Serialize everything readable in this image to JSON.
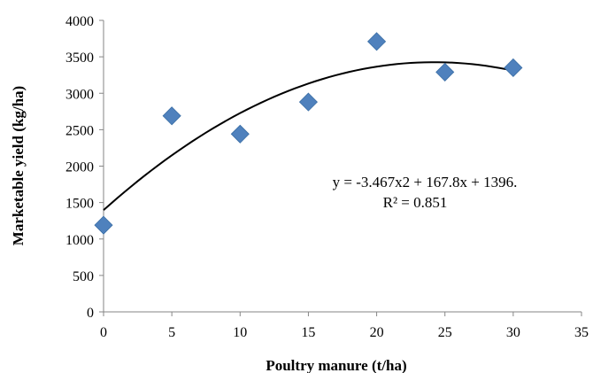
{
  "chart_data": {
    "type": "scatter",
    "title": "",
    "xlabel": "Poultry manure (t/ha)",
    "ylabel": "Marketable yield (kg/ha)",
    "xlim": [
      0,
      35
    ],
    "ylim": [
      0,
      4000
    ],
    "x_ticks": [
      0,
      5,
      10,
      15,
      20,
      25,
      30,
      35
    ],
    "y_ticks": [
      0,
      500,
      1000,
      1500,
      2000,
      2500,
      3000,
      3500,
      4000
    ],
    "grid": false,
    "legend": "none",
    "series": [
      {
        "marker": "diamond",
        "color": "#4f81bd",
        "points": [
          {
            "x": 0,
            "y": 1190
          },
          {
            "x": 5,
            "y": 2690
          },
          {
            "x": 10,
            "y": 2440
          },
          {
            "x": 15,
            "y": 2880
          },
          {
            "x": 20,
            "y": 3710
          },
          {
            "x": 25,
            "y": 3290
          },
          {
            "x": 30,
            "y": 3350
          }
        ]
      }
    ],
    "trendline": {
      "type": "polynomial",
      "coefficients": {
        "a": -3.467,
        "b": 167.8,
        "c": 1396
      },
      "x_range": [
        0,
        30
      ],
      "color": "#000000"
    },
    "annotations": {
      "equation": "y = -3.467x2 + 167.8x + 1396.",
      "r_squared": "R² = 0.851"
    }
  }
}
